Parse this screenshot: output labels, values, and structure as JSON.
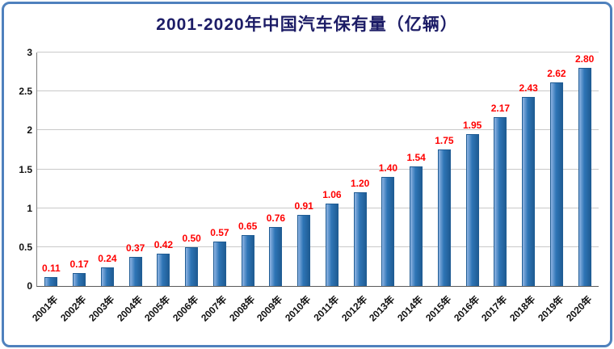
{
  "chart_data": {
    "type": "bar",
    "title": "2001-2020年中国汽车保有量（亿辆）",
    "xlabel": "",
    "ylabel": "",
    "categories": [
      "2001年",
      "2002年",
      "2003年",
      "2004年",
      "2005年",
      "2006年",
      "2007年",
      "2008年",
      "2009年",
      "2010年",
      "2011年",
      "2012年",
      "2013年",
      "2014年",
      "2015年",
      "2016年",
      "2017年",
      "2018年",
      "2019年",
      "2020年"
    ],
    "values": [
      0.11,
      0.17,
      0.24,
      0.37,
      0.42,
      0.5,
      0.57,
      0.65,
      0.76,
      0.91,
      1.06,
      1.2,
      1.4,
      1.54,
      1.75,
      1.95,
      2.17,
      2.43,
      2.62,
      2.8
    ],
    "value_labels": [
      "0.11",
      "0.17",
      "0.24",
      "0.37",
      "0.42",
      "0.50",
      "0.57",
      "0.65",
      "0.76",
      "0.91",
      "1.06",
      "1.20",
      "1.40",
      "1.54",
      "1.75",
      "1.95",
      "2.17",
      "2.43",
      "2.62",
      "2.80"
    ],
    "ylim": [
      0,
      3
    ],
    "yticks": [
      0,
      0.5,
      1,
      1.5,
      2,
      2.5,
      3
    ],
    "ytick_labels": [
      "0",
      "0.5",
      "1",
      "1.5",
      "2",
      "2.5",
      "3"
    ],
    "grid": true,
    "legend": "none",
    "colors": {
      "bar_main": "#2e75b6",
      "bar_highlight": "#8fb4e3",
      "bar_shadow": "#1f5c94",
      "data_label": "#ff0000",
      "title_text": "#1c1c66",
      "frame_border": "#4f81bd",
      "gridline": "#c9c9c9",
      "axis": "#595959"
    }
  }
}
